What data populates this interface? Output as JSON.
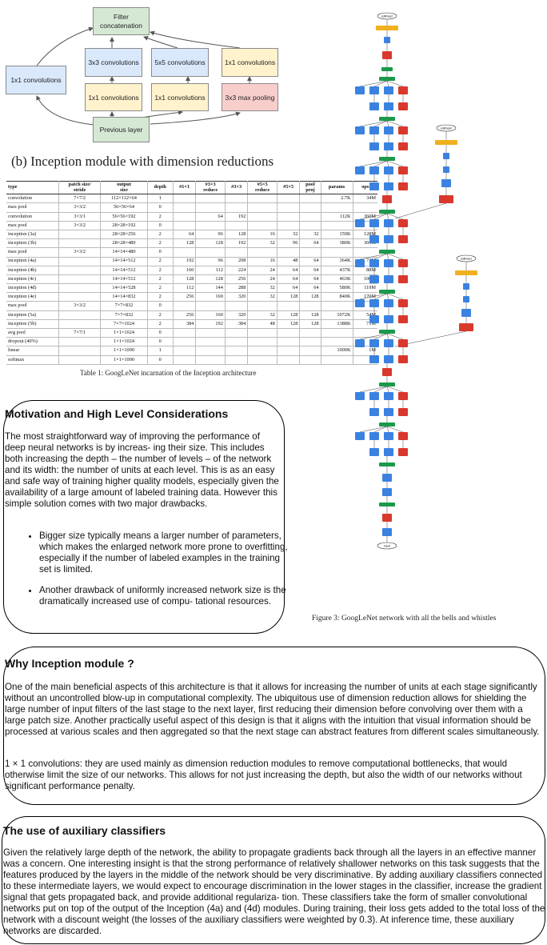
{
  "inception_diagram": {
    "filter_concat": "Filter\nconcatenation",
    "conv1x1_left": "1x1 convolutions",
    "conv3x3": "3x3 convolutions",
    "conv5x5": "5x5 convolutions",
    "conv1x1_right": "1x1 convolutions",
    "conv1x1_a": "1x1 convolutions",
    "conv1x1_b": "1x1 convolutions",
    "maxpool": "3x3 max pooling",
    "previous_layer": "Previous layer",
    "caption": "(b)  Inception module with dimension reductions"
  },
  "table": {
    "headers": [
      "type",
      "patch size/\nstride",
      "output\nsize",
      "depth",
      "#1×1",
      "#3×3\nreduce",
      "#3×3",
      "#5×5\nreduce",
      "#5×5",
      "pool\nproj",
      "params",
      "ops"
    ],
    "rows": [
      [
        "convolution",
        "7×7/2",
        "112×112×64",
        "1",
        "",
        "",
        "",
        "",
        "",
        "",
        "2.7K",
        "34M"
      ],
      [
        "max pool",
        "3×3/2",
        "56×56×64",
        "0",
        "",
        "",
        "",
        "",
        "",
        "",
        "",
        ""
      ],
      [
        "convolution",
        "3×3/1",
        "56×56×192",
        "2",
        "",
        "64",
        "192",
        "",
        "",
        "",
        "112K",
        "360M"
      ],
      [
        "max pool",
        "3×3/2",
        "28×28×192",
        "0",
        "",
        "",
        "",
        "",
        "",
        "",
        "",
        ""
      ],
      [
        "inception (3a)",
        "",
        "28×28×256",
        "2",
        "64",
        "96",
        "128",
        "16",
        "32",
        "32",
        "159K",
        "128M"
      ],
      [
        "inception (3b)",
        "",
        "28×28×480",
        "2",
        "128",
        "128",
        "192",
        "32",
        "96",
        "64",
        "380K",
        "304M"
      ],
      [
        "max pool",
        "3×3/2",
        "14×14×480",
        "0",
        "",
        "",
        "",
        "",
        "",
        "",
        "",
        ""
      ],
      [
        "inception (4a)",
        "",
        "14×14×512",
        "2",
        "192",
        "96",
        "208",
        "16",
        "48",
        "64",
        "364K",
        "73M"
      ],
      [
        "inception (4b)",
        "",
        "14×14×512",
        "2",
        "160",
        "112",
        "224",
        "24",
        "64",
        "64",
        "437K",
        "88M"
      ],
      [
        "inception (4c)",
        "",
        "14×14×512",
        "2",
        "128",
        "128",
        "256",
        "24",
        "64",
        "64",
        "463K",
        "100M"
      ],
      [
        "inception (4d)",
        "",
        "14×14×528",
        "2",
        "112",
        "144",
        "288",
        "32",
        "64",
        "64",
        "580K",
        "119M"
      ],
      [
        "inception (4e)",
        "",
        "14×14×832",
        "2",
        "256",
        "160",
        "320",
        "32",
        "128",
        "128",
        "840K",
        "170M"
      ],
      [
        "max pool",
        "3×3/2",
        "7×7×832",
        "0",
        "",
        "",
        "",
        "",
        "",
        "",
        "",
        ""
      ],
      [
        "inception (5a)",
        "",
        "7×7×832",
        "2",
        "256",
        "160",
        "320",
        "32",
        "128",
        "128",
        "1072K",
        "54M"
      ],
      [
        "inception (5b)",
        "",
        "7×7×1024",
        "2",
        "384",
        "192",
        "384",
        "48",
        "128",
        "128",
        "1388K",
        "71M"
      ],
      [
        "avg pool",
        "7×7/1",
        "1×1×1024",
        "0",
        "",
        "",
        "",
        "",
        "",
        "",
        "",
        ""
      ],
      [
        "dropout (40%)",
        "",
        "1×1×1024",
        "0",
        "",
        "",
        "",
        "",
        "",
        "",
        "",
        ""
      ],
      [
        "linear",
        "",
        "1×1×1000",
        "1",
        "",
        "",
        "",
        "",
        "",
        "",
        "1000K",
        "1M"
      ],
      [
        "softmax",
        "",
        "1×1×1000",
        "0",
        "",
        "",
        "",
        "",
        "",
        "",
        "",
        ""
      ]
    ],
    "caption": "Table 1: GoogLeNet incarnation of the Inception architecture"
  },
  "figure3_caption": "Figure 3: GoogLeNet network with all the bells and whistles",
  "network_labels": {
    "softmax": "softmax2",
    "softmax1": "softmax1",
    "softmax0": "softmax0",
    "input": "input"
  },
  "motivation": {
    "title": "Motivation and High Level Considerations",
    "body": "The most straightforward way of improving the performance of deep neural networks is by increas- ing their size. This includes both increasing the depth – the number of levels – of the network and its width: the number of units at each level. This is as an easy and safe way of training higher quality models, especially given the availability of a large amount of labeled training data. However this simple solution comes with two major drawbacks.",
    "bullets": [
      "Bigger size typically means a larger number of parameters, which makes the enlarged network more prone to overfitting, especially if the number of labeled examples in the training set is limited.",
      "Another drawback of uniformly increased network size is the dramatically increased use of compu- tational resources."
    ]
  },
  "why_inception": {
    "title": "Why Inception module ?",
    "para1": "One of the main beneficial aspects of this architecture is that it allows for increasing the number of units at each stage significantly without an uncontrolled blow-up in computational complexity. The ubiquitous use of dimension reduction allows for shielding the large number of input filters of the last stage to the next layer, first reducing their dimension before convolving over them with a large patch size. Another practically useful aspect of this design is that it aligns with the intuition that visual information should be processed at various scales and then aggregated so that the next stage can abstract features from different scales simultaneously.",
    "para2": "1 × 1 convolutions: they are used mainly as dimension reduction modules to remove computational bottlenecks, that would otherwise limit the size of our networks. This allows for not just increasing the depth, but also the width of our networks without significant performance penalty."
  },
  "auxiliary": {
    "title": "The use of auxiliary classifiers",
    "body": "Given the relatively large depth of the network, the ability to propagate gradients back through all the layers in an effective manner was a concern. One interesting insight is that the strong performance of relatively shallower networks on this task suggests that the features produced by the layers in the middle of the network should be very discriminative. By adding auxiliary classifiers connected to these intermediate layers, we would expect to encourage discrimination in the lower stages in the classifier, increase the gradient signal that gets propagated back, and provide additional regulariza- tion. These classifiers take the form of smaller convolutional networks put on top of the output of the Inception (4a) and (4d) modules. During training, their loss gets added to the total loss of the network with a discount weight (the losses of the auxiliary classifiers were weighted by 0.3). At inference time, these auxiliary networks are discarded."
  },
  "colors": {
    "concat_green": "#d5e8d4",
    "conv_blue": "#dae8fc",
    "conv_yellow": "#fff2cc",
    "pool_red": "#f8cecc",
    "net_blue": "#3b82e0",
    "net_green": "#1b9a4a",
    "net_red": "#d9382c",
    "net_orange": "#f0b020"
  }
}
